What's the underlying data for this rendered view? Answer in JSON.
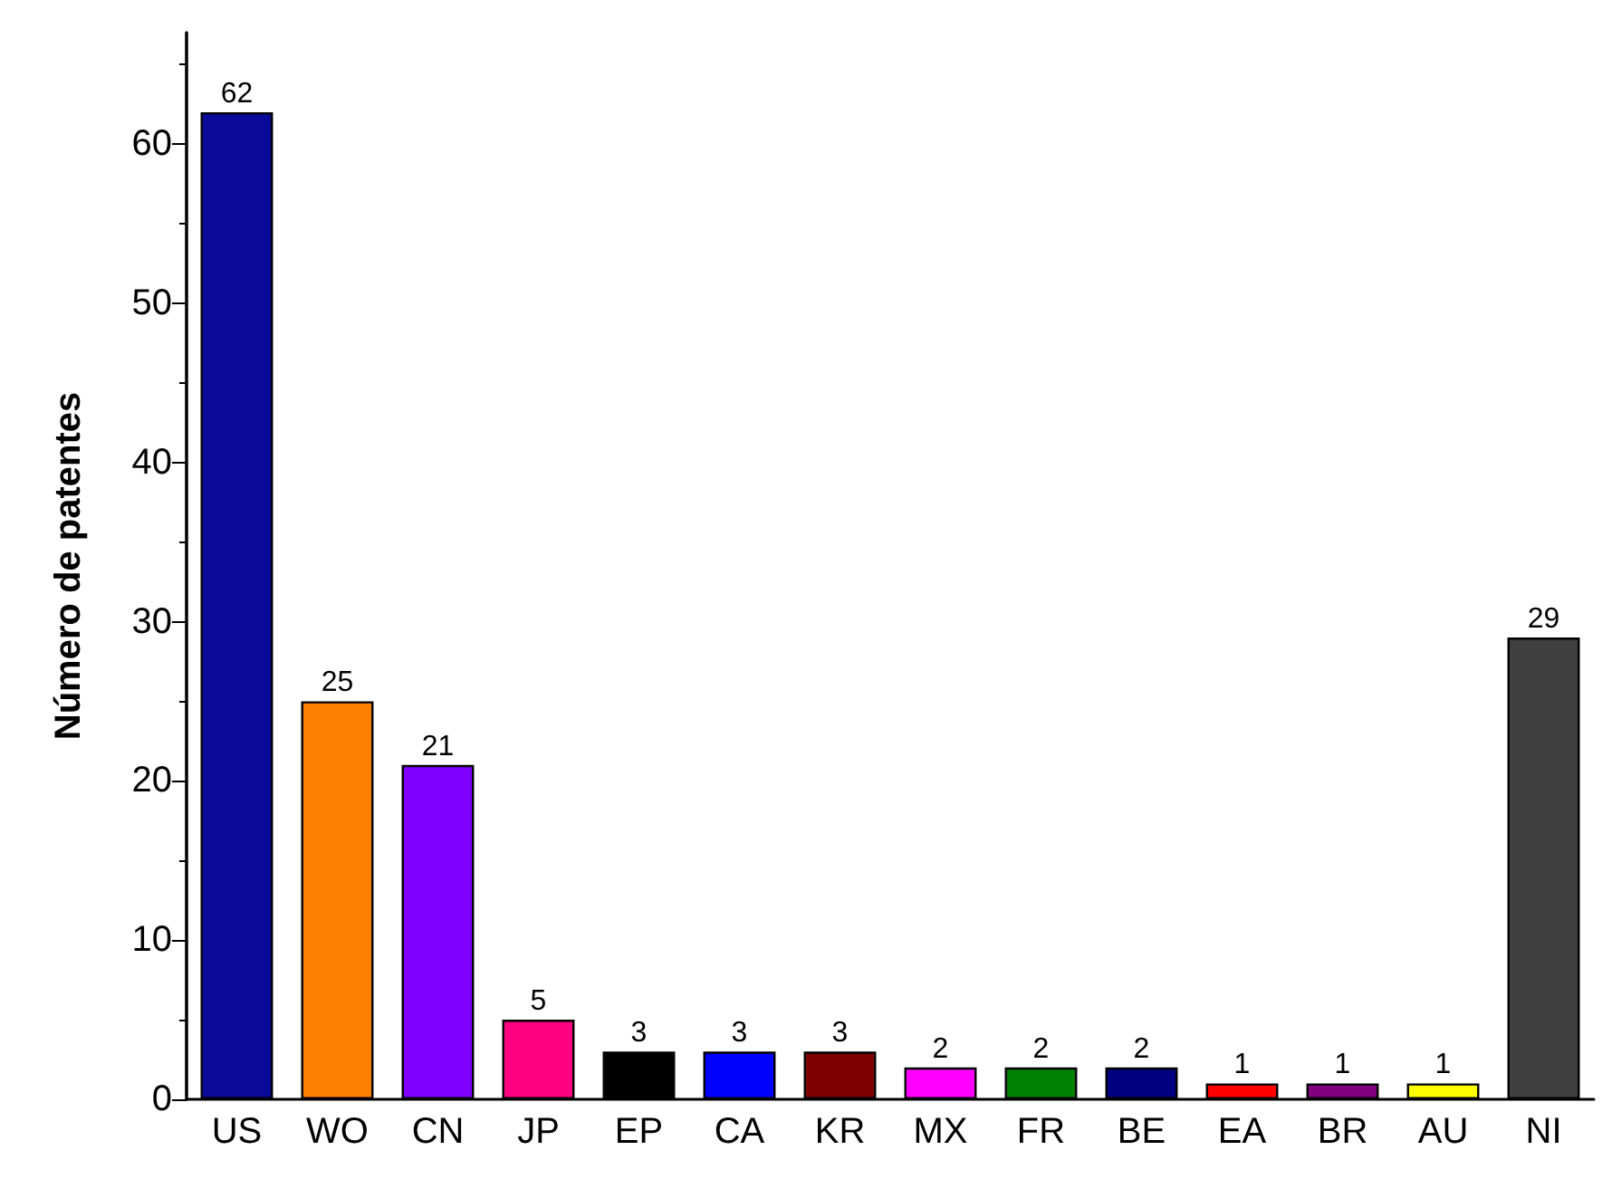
{
  "chart_data": {
    "type": "bar",
    "ylabel": "Número de patentes",
    "categories": [
      "US",
      "WO",
      "CN",
      "JP",
      "EP",
      "CA",
      "KR",
      "MX",
      "FR",
      "BE",
      "EA",
      "BR",
      "AU",
      "NI"
    ],
    "values": [
      62,
      25,
      21,
      5,
      3,
      3,
      3,
      2,
      2,
      2,
      1,
      1,
      1,
      29
    ],
    "colors": [
      "#0a0a9a",
      "#ff8000",
      "#8000ff",
      "#ff0080",
      "#000000",
      "#0000ff",
      "#800000",
      "#ff00ff",
      "#008000",
      "#000080",
      "#ff0000",
      "#800080",
      "#ffff00",
      "#404040"
    ],
    "ylim": [
      0,
      67
    ],
    "yticks": [
      0,
      10,
      20,
      30,
      40,
      50,
      60
    ],
    "data_labels": true,
    "grid": false
  }
}
